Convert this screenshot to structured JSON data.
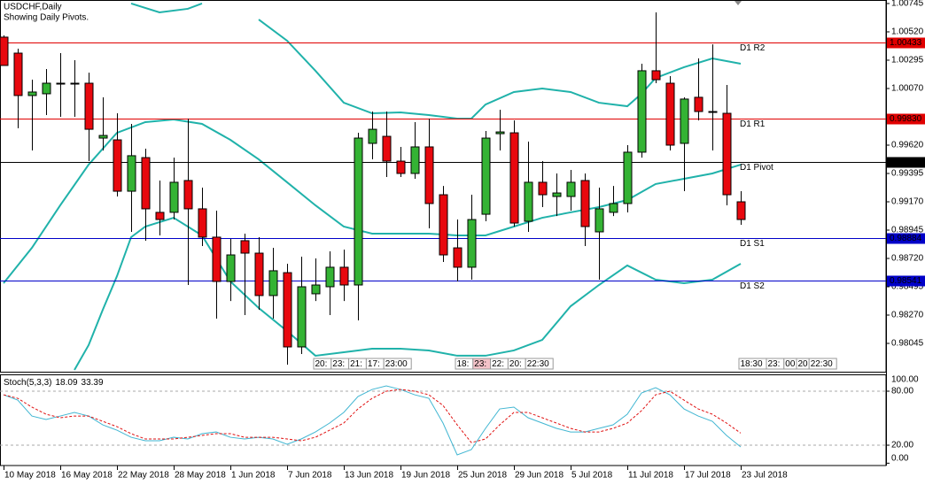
{
  "chart_data": [
    {
      "type": "candlestick",
      "title": "USDCHF,Daily",
      "subtitle": "Showing Daily Pivots.",
      "categories": [
        "10 May 2018",
        null,
        null,
        null,
        "16 May 2018",
        null,
        null,
        null,
        "22 May 2018",
        null,
        null,
        null,
        "28 May 2018",
        null,
        null,
        null,
        "1 Jun 2018",
        null,
        null,
        null,
        "7 Jun 2018",
        null,
        null,
        null,
        "13 Jun 2018",
        null,
        null,
        null,
        "19 Jun 2018",
        null,
        null,
        null,
        "25 Jun 2018",
        null,
        null,
        null,
        "29 Jun 2018",
        null,
        null,
        null,
        "5 Jul 2018",
        null,
        null,
        null,
        "11 Jul 2018",
        null,
        null,
        null,
        "17 Jul 2018",
        null,
        null,
        null,
        "23 Jul 2018"
      ],
      "open": [
        1.00478,
        1.00351,
        1.00014,
        1.00028,
        1.00112,
        1.00112,
        1.00112,
        0.99676,
        0.99662,
        0.99254,
        0.99521,
        0.99086,
        0.99086,
        0.99339,
        0.99114,
        0.98889,
        0.98537,
        0.98861,
        0.98762,
        0.98425,
        0.98607,
        0.98017,
        0.98439,
        0.98495,
        0.9865,
        0.98509,
        0.99634,
        0.9969,
        0.99493,
        0.99395,
        0.99606,
        0.99226,
        0.98804,
        0.9865,
        0.99071,
        0.99711,
        0.99718,
        0.99015,
        0.99325,
        0.99212,
        0.99212,
        0.99339,
        0.98931,
        0.99086,
        0.99156,
        0.99564,
        1.00211,
        1.00112,
        0.99634,
        1.0,
        0.99887,
        0.99873,
        0.9917
      ],
      "high": [
        1.00492,
        1.00386,
        1.0014,
        1.00225,
        1.00351,
        1.00295,
        1.00196,
        1.0,
        0.99873,
        0.99789,
        0.99592,
        0.99339,
        0.99521,
        0.99831,
        0.99282,
        0.991,
        0.98875,
        0.98917,
        0.98889,
        0.98804,
        0.98678,
        0.98734,
        0.9872,
        0.98776,
        0.9879,
        0.99718,
        0.99887,
        0.99887,
        0.99606,
        0.99803,
        0.99831,
        0.99296,
        0.99029,
        0.99226,
        0.99732,
        0.99901,
        0.99817,
        0.99648,
        0.99493,
        0.99395,
        0.99423,
        0.99395,
        0.99282,
        0.99296,
        0.9962,
        1.00267,
        1.00675,
        1.00168,
        1.0,
        1.00309,
        1.00421,
        1.00098,
        0.99254
      ],
      "low": [
        1.00253,
        0.99754,
        0.99578,
        0.99859,
        0.99845,
        0.99845,
        0.99493,
        0.99578,
        0.99212,
        0.98931,
        0.98861,
        0.98903,
        0.99029,
        0.98509,
        0.98818,
        0.98242,
        0.98382,
        0.9827,
        0.98312,
        0.98242,
        0.97876,
        0.97961,
        0.98382,
        0.9827,
        0.98382,
        0.98228,
        0.99507,
        0.99367,
        0.99367,
        0.99353,
        0.98959,
        0.98692,
        0.98537,
        0.98551,
        0.99015,
        0.99578,
        0.98973,
        0.98931,
        0.99128,
        0.99057,
        0.991,
        0.98818,
        0.98551,
        0.99057,
        0.99086,
        0.99521,
        1.00112,
        0.99578,
        0.99254,
        0.99817,
        0.99578,
        0.99142,
        0.98987
      ],
      "close": [
        1.00253,
        1.00014,
        1.00042,
        1.00112,
        1.00112,
        1.00112,
        0.99746,
        0.99697,
        0.99254,
        0.99536,
        0.99114,
        0.99029,
        0.99325,
        0.99114,
        0.98889,
        0.98537,
        0.98748,
        0.98762,
        0.98425,
        0.98622,
        0.98017,
        0.98495,
        0.98509,
        0.9865,
        0.98509,
        0.99676,
        0.99746,
        0.99493,
        0.99395,
        0.99606,
        0.99156,
        0.98748,
        0.9865,
        0.99029,
        0.99676,
        0.99725,
        0.99001,
        0.99325,
        0.99226,
        0.9924,
        0.99325,
        0.98973,
        0.99114,
        0.99156,
        0.99564,
        1.00211,
        1.0014,
        0.9962,
        0.99986,
        0.99887,
        0.99887,
        0.99226,
        0.99029
      ],
      "up_color": "#34b334",
      "down_color": "#e8080e",
      "overlays": [
        {
          "color": "#20b2aa",
          "x": [
            9,
            11,
            13,
            14,
            16,
            18,
            20,
            22,
            24,
            26,
            28,
            30,
            32,
            33,
            34,
            36,
            38,
            40,
            42,
            44,
            45,
            46,
            48,
            50,
            52
          ],
          "values": [
            1.00745,
            1.00675,
            1.00703,
            1.00745,
            null,
            1.00618,
            1.0045,
            1.00211,
            0.99957,
            0.99873,
            0.9988,
            0.99859,
            0.99831,
            0.99831,
            0.99943,
            1.00042,
            1.0007,
            1.00042,
            0.99957,
            0.99929,
            1.00028,
            1.00154,
            1.00239,
            1.00309,
            1.00267
          ]
        },
        {
          "color": "#20b2aa",
          "x": [
            0,
            2,
            4,
            6,
            8,
            10,
            12,
            14,
            16,
            18,
            20,
            22,
            24,
            26,
            28,
            30,
            32,
            34,
            36,
            38,
            40,
            42,
            44,
            46,
            48,
            50,
            52
          ],
          "values": [
            0.98523,
            0.98804,
            0.99142,
            0.99465,
            0.99718,
            0.99803,
            0.99824,
            0.99789,
            0.99662,
            0.99507,
            0.99325,
            0.99142,
            0.98973,
            0.98917,
            0.98917,
            0.98917,
            0.98903,
            0.98903,
            0.98973,
            0.99043,
            0.99086,
            0.99128,
            0.99184,
            0.99311,
            0.99353,
            0.99395,
            0.99465
          ]
        },
        {
          "color": "#20b2aa",
          "x": [
            5,
            6,
            7,
            8,
            9,
            10,
            12,
            14,
            16,
            18,
            20,
            22,
            24,
            26,
            28,
            30,
            32,
            34,
            36,
            38,
            40,
            42,
            44,
            46,
            48,
            50,
            52
          ],
          "values": [
            0.97834,
            0.98031,
            0.98312,
            0.98579,
            0.98889,
            0.98973,
            0.99043,
            0.98903,
            0.98537,
            0.98326,
            0.98143,
            0.97947,
            0.97975,
            0.98003,
            0.98003,
            0.97989,
            0.97947,
            0.97947,
            0.97989,
            0.98073,
            0.9834,
            0.98509,
            0.98664,
            0.98551,
            0.98523,
            0.98551,
            0.98678
          ]
        }
      ],
      "pivots": {
        "names": [
          "D1 R2",
          "D1 R1",
          "D1 Pivot",
          "D1 S1",
          "D1 S2"
        ],
        "values": [
          1.00433,
          0.9983,
          0.99487,
          0.98884,
          0.98541
        ],
        "value_labels": [
          "1.00433",
          "0.99830",
          "0.99487",
          "0.98884",
          "0.98541"
        ],
        "colors": [
          "#e00000",
          "#e00000",
          "#000000",
          "#0000c8",
          "#0000c8"
        ]
      },
      "sessions": [
        [
          "20:",
          "23:",
          "21:",
          "17:",
          "23:00"
        ],
        [
          "18:",
          "23:",
          "22:",
          "20:",
          "22:30"
        ],
        [
          "18:30",
          "23:",
          "00",
          "20",
          "22:30"
        ]
      ],
      "ylim": [
        0.9782,
        1.00773
      ],
      "yticks": [
        1.00745,
        {
          "value": 1.0052,
          "label": "1.00520"
        },
        1.00295,
        {
          "value": 1.0007,
          "label": "1.00070"
        },
        {
          "value": 0.9962,
          "label": "0.99620"
        },
        0.99395,
        {
          "value": 0.9917,
          "label": "0.99170"
        },
        0.98945,
        {
          "value": 0.9872,
          "label": "0.98720"
        },
        0.98495,
        {
          "value": 0.9827,
          "label": "0.98270"
        },
        0.98045
      ]
    },
    {
      "type": "stochastic",
      "title": "Stoch(5,3,3)",
      "series": [
        {
          "color": "#41b6d2",
          "dash": false,
          "values": [
            76.0,
            70.1,
            52.4,
            48.5,
            52.4,
            56.4,
            52.4,
            42.6,
            36.7,
            28.8,
            24.9,
            24.9,
            28.8,
            26.9,
            32.8,
            34.7,
            28.8,
            26.9,
            28.8,
            26.9,
            21.0,
            26.9,
            34.7,
            44.6,
            56.4,
            74.1,
            81.9,
            85.9,
            81.9,
            76.0,
            72.1,
            44.6,
            9.2,
            15.1,
            38.7,
            60.3,
            62.3,
            50.5,
            44.6,
            38.7,
            34.7,
            34.7,
            38.7,
            42.6,
            54.4,
            78.0,
            83.9,
            76.0,
            60.3,
            52.4,
            46.5,
            30.8,
            18.09
          ]
        },
        {
          "color": "#e01010",
          "dash": true,
          "values": [
            76.0,
            72.1,
            62.3,
            54.4,
            50.5,
            52.4,
            52.4,
            46.5,
            40.6,
            32.8,
            26.9,
            26.9,
            26.9,
            28.8,
            30.8,
            32.8,
            32.8,
            28.8,
            28.8,
            28.8,
            26.9,
            24.9,
            28.8,
            36.7,
            44.6,
            60.3,
            72.1,
            80.0,
            81.9,
            80.0,
            76.0,
            64.2,
            42.6,
            22.9,
            26.9,
            42.6,
            56.4,
            56.4,
            50.5,
            44.6,
            38.7,
            34.7,
            34.7,
            38.7,
            44.6,
            58.3,
            76.0,
            80.0,
            70.1,
            60.3,
            54.4,
            44.6,
            33.39
          ]
        }
      ],
      "levels": [
        80,
        20
      ],
      "ylim": [
        -2.6,
        97.7
      ],
      "yticks": [
        {
          "value": 100,
          "label": "100.00"
        },
        {
          "value": 80,
          "label": "80.00"
        },
        {
          "value": 20,
          "label": "20.00"
        },
        {
          "value": 0,
          "label": "0.00"
        }
      ]
    }
  ]
}
